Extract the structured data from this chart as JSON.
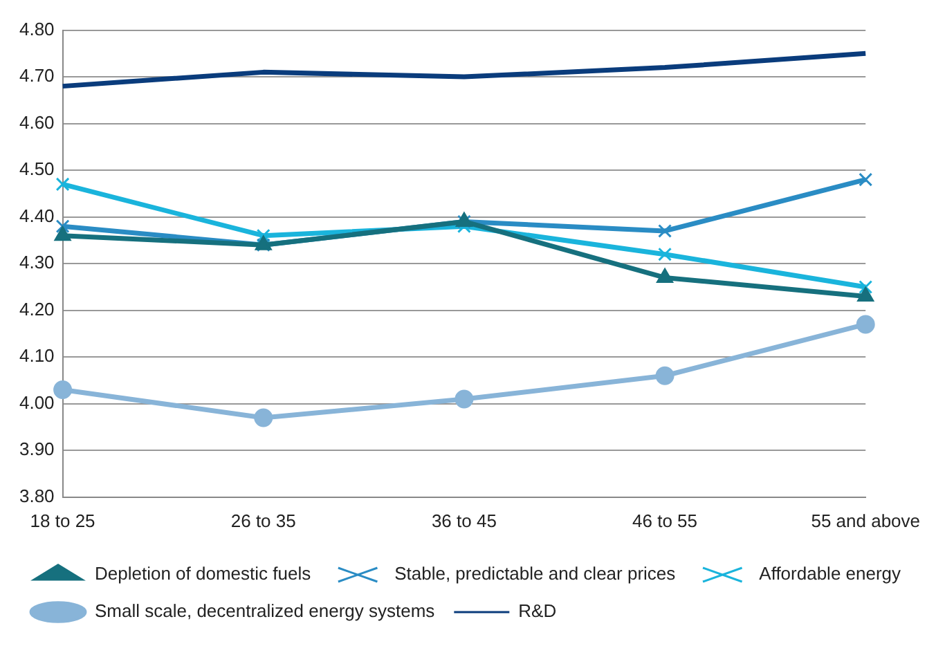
{
  "chart_data": {
    "type": "line",
    "categories": [
      "18 to 25",
      "26 to 35",
      "36 to 45",
      "46 to 55",
      "55 and above"
    ],
    "ylim": [
      3.8,
      4.8
    ],
    "yticks": [
      {
        "value": 3.8,
        "label": "3.80"
      },
      {
        "value": 3.9,
        "label": "3.90"
      },
      {
        "value": 4.0,
        "label": "4.00"
      },
      {
        "value": 4.1,
        "label": "4.10"
      },
      {
        "value": 4.2,
        "label": "4.20"
      },
      {
        "value": 4.3,
        "label": "4.30"
      },
      {
        "value": 4.4,
        "label": "4.40"
      },
      {
        "value": 4.5,
        "label": "4.50"
      },
      {
        "value": 4.6,
        "label": "4.60"
      },
      {
        "value": 4.7,
        "label": "4.70"
      },
      {
        "value": 4.8,
        "label": "4.80"
      }
    ],
    "grid": "y",
    "legend": "bottom",
    "line_style": "solid",
    "series": [
      {
        "name": "Depletion of domestic fuels",
        "color": "#16707e",
        "marker": "triangle",
        "values": [
          4.36,
          4.34,
          4.39,
          4.27,
          4.23
        ]
      },
      {
        "name": "Stable, predictable and clear prices",
        "color": "#2a8cc4",
        "marker": "cross",
        "values": [
          4.38,
          4.34,
          4.39,
          4.37,
          4.48
        ]
      },
      {
        "name": "Affordable energy",
        "color": "#1ab4dc",
        "marker": "cross",
        "values": [
          4.47,
          4.36,
          4.38,
          4.32,
          4.25
        ]
      },
      {
        "name": "Small scale, decentralized energy systems",
        "color": "#88b4d8",
        "marker": "circle",
        "values": [
          4.03,
          3.97,
          4.01,
          4.06,
          4.17
        ]
      },
      {
        "name": "R&D",
        "color": "#0a3c7c",
        "marker": "none",
        "values": [
          4.68,
          4.71,
          4.7,
          4.72,
          4.75
        ]
      }
    ]
  }
}
